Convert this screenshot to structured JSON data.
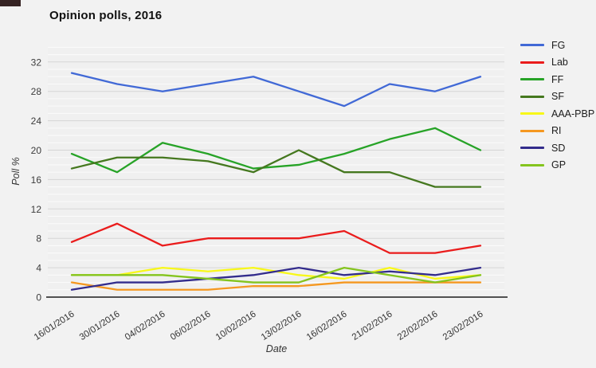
{
  "page": {
    "background": "#f2f2f2",
    "corner_artifact_color": "#362424"
  },
  "chart": {
    "title": "Opinion polls, 2016",
    "xlabel": "Date",
    "ylabel": "Poll %"
  },
  "chart_data": {
    "type": "line",
    "title": "Opinion polls, 2016",
    "xlabel": "Date",
    "ylabel": "Poll %",
    "categories": [
      "16/01/2016",
      "30/01/2016",
      "04/02/2016",
      "06/02/2016",
      "10/02/2016",
      "13/02/2016",
      "16/02/2016",
      "21/02/2016",
      "22/02/2016",
      "23/02/2016"
    ],
    "series": [
      {
        "name": "FG",
        "color": "#4169d6",
        "values": [
          30.5,
          29,
          28,
          29,
          30,
          28,
          26,
          29,
          28,
          30
        ]
      },
      {
        "name": "Lab",
        "color": "#ea1c1c",
        "values": [
          7.5,
          10,
          7,
          8,
          8,
          8,
          9,
          6,
          6,
          7
        ]
      },
      {
        "name": "FF",
        "color": "#27a327",
        "values": [
          19.5,
          17,
          21,
          19.5,
          17.5,
          18,
          19.5,
          21.5,
          23,
          20
        ]
      },
      {
        "name": "SF",
        "color": "#45781f",
        "values": [
          17.5,
          19,
          19,
          18.5,
          17,
          20,
          17,
          17,
          15,
          15
        ]
      },
      {
        "name": "AAA-PBP",
        "color": "#f8f818",
        "values": [
          3,
          3,
          4,
          3.5,
          4,
          3,
          2.5,
          4,
          2.5,
          3
        ]
      },
      {
        "name": "RI",
        "color": "#f59820",
        "values": [
          2,
          1,
          1,
          1,
          1.5,
          1.5,
          2,
          2,
          2,
          2
        ]
      },
      {
        "name": "SD",
        "color": "#332c8c",
        "values": [
          1,
          2,
          2,
          2.5,
          3,
          4,
          3,
          3.5,
          3,
          4
        ]
      },
      {
        "name": "GP",
        "color": "#84c41e",
        "values": [
          3,
          3,
          3,
          2.5,
          2,
          2,
          4,
          3,
          2,
          3
        ]
      }
    ],
    "yticks": [
      0,
      4,
      8,
      12,
      16,
      20,
      24,
      28,
      32
    ],
    "ylim": [
      0,
      34
    ],
    "grid": "horizontal, minor every 1 unit, major every 4 units",
    "legend_position": "right"
  }
}
